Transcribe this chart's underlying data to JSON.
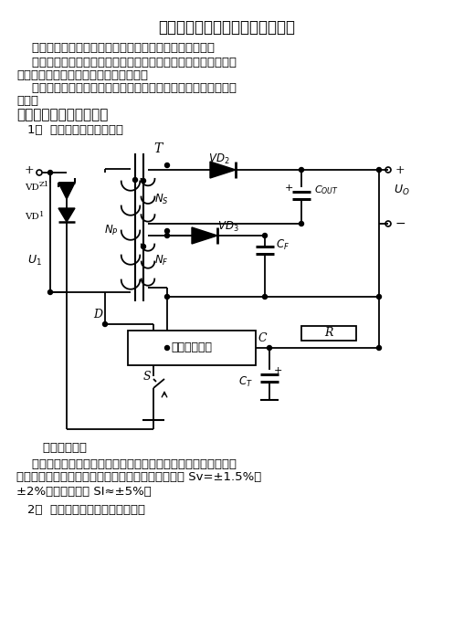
{
  "title": "开关电源的四种基本反馈电路类型",
  "para1": "    开关电源是闭环控制电路，所以输出【反馈】必不可少。",
  "para2_l1": "    这个反馈是指将输出电压通过某种形式，反馈给控制电路中的误",
  "para2_l2": "差放大器输入端，与基准电压进行比较。",
  "para3_l1": "    开关控制电路的形式，可以有千万种，但反馈电路只有四种基本",
  "para3_l2": "类型。",
  "section": "常用的四种基本反馈类型",
  "item1": "1、  基本反馈电路：如下图",
  "caption": "    基本反馈电路",
  "desc_l1": "    这种反馈电路的优点是电路简单、成本低廉，适用于小型化、经",
  "desc_l2": "济型的开关电源。缺点是稳压性能较差，电压调整率 Sv=±1.5%～",
  "desc_l3": "±2%，负载调整率 SI≈±5%。",
  "item2": "2、  改进型基本反馈电路：如下图",
  "bg_color": "#ffffff",
  "text_color": "#000000"
}
